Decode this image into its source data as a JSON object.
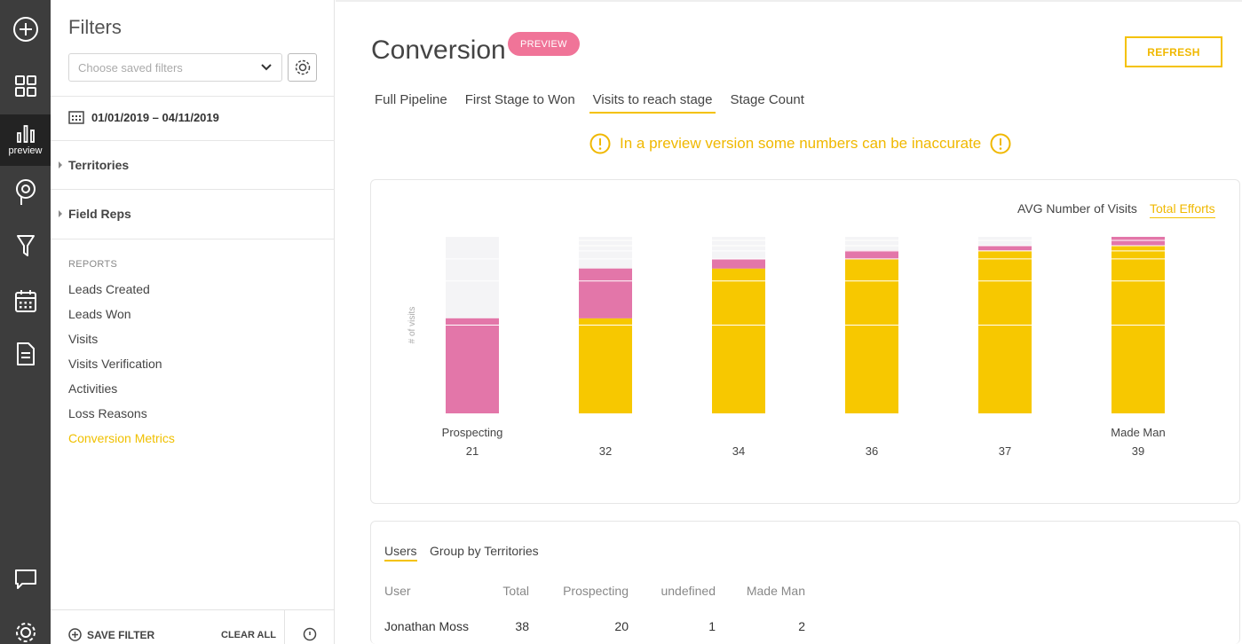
{
  "rail": {
    "preview_caption": "preview"
  },
  "sidebar": {
    "title": "Filters",
    "saved_filters_placeholder": "Choose saved filters",
    "date_range": "01/01/2019 – 04/11/2019",
    "sections": [
      "Territories",
      "Field Reps"
    ],
    "reports_heading": "REPORTS",
    "reports": [
      "Leads Created",
      "Leads Won",
      "Visits",
      "Visits Verification",
      "Activities",
      "Loss Reasons",
      "Conversion Metrics"
    ],
    "active_report": "Conversion Metrics",
    "save_filter_label": "SAVE FILTER",
    "clear_all_label": "CLEAR ALL"
  },
  "main": {
    "title": "Conversion",
    "badge": "PREVIEW",
    "refresh_label": "REFRESH",
    "tabs": [
      "Full Pipeline",
      "First Stage to Won",
      "Visits to reach stage",
      "Stage Count"
    ],
    "active_tab": "Visits to reach stage",
    "warning": "In a preview version some numbers can be inaccurate"
  },
  "chart_toggle": {
    "avg_label": "AVG Number of Visits",
    "total_label": "Total Efforts",
    "active": "Total Efforts"
  },
  "chart_data": {
    "type": "bar",
    "stacked": true,
    "ylabel": "# of visits",
    "categories": [
      {
        "name": "Prospecting",
        "value": "21"
      },
      {
        "name": "",
        "value": "32"
      },
      {
        "name": "",
        "value": "34"
      },
      {
        "name": "",
        "value": "36"
      },
      {
        "name": "",
        "value": "37"
      },
      {
        "name": "Made Man",
        "value": "39"
      }
    ],
    "ylim": [
      0,
      39
    ],
    "series": [
      {
        "color": "#f7c800",
        "values": [
          0,
          21,
          32,
          34,
          36,
          37
        ]
      },
      {
        "color": "#e376a9",
        "values": [
          21,
          11,
          2,
          2,
          1,
          2
        ]
      }
    ],
    "remainder_color": "#f4f4f6",
    "colors": {
      "accent": "#f4c200",
      "pink": "#e376a9"
    }
  },
  "table": {
    "tabs": [
      "Users",
      "Group by Territories"
    ],
    "active_tab": "Users",
    "columns": [
      "User",
      "Total",
      "Prospecting",
      "undefined",
      "Made Man"
    ],
    "rows": [
      [
        "Jonathan Moss",
        "38",
        "20",
        "1",
        "2"
      ]
    ]
  }
}
